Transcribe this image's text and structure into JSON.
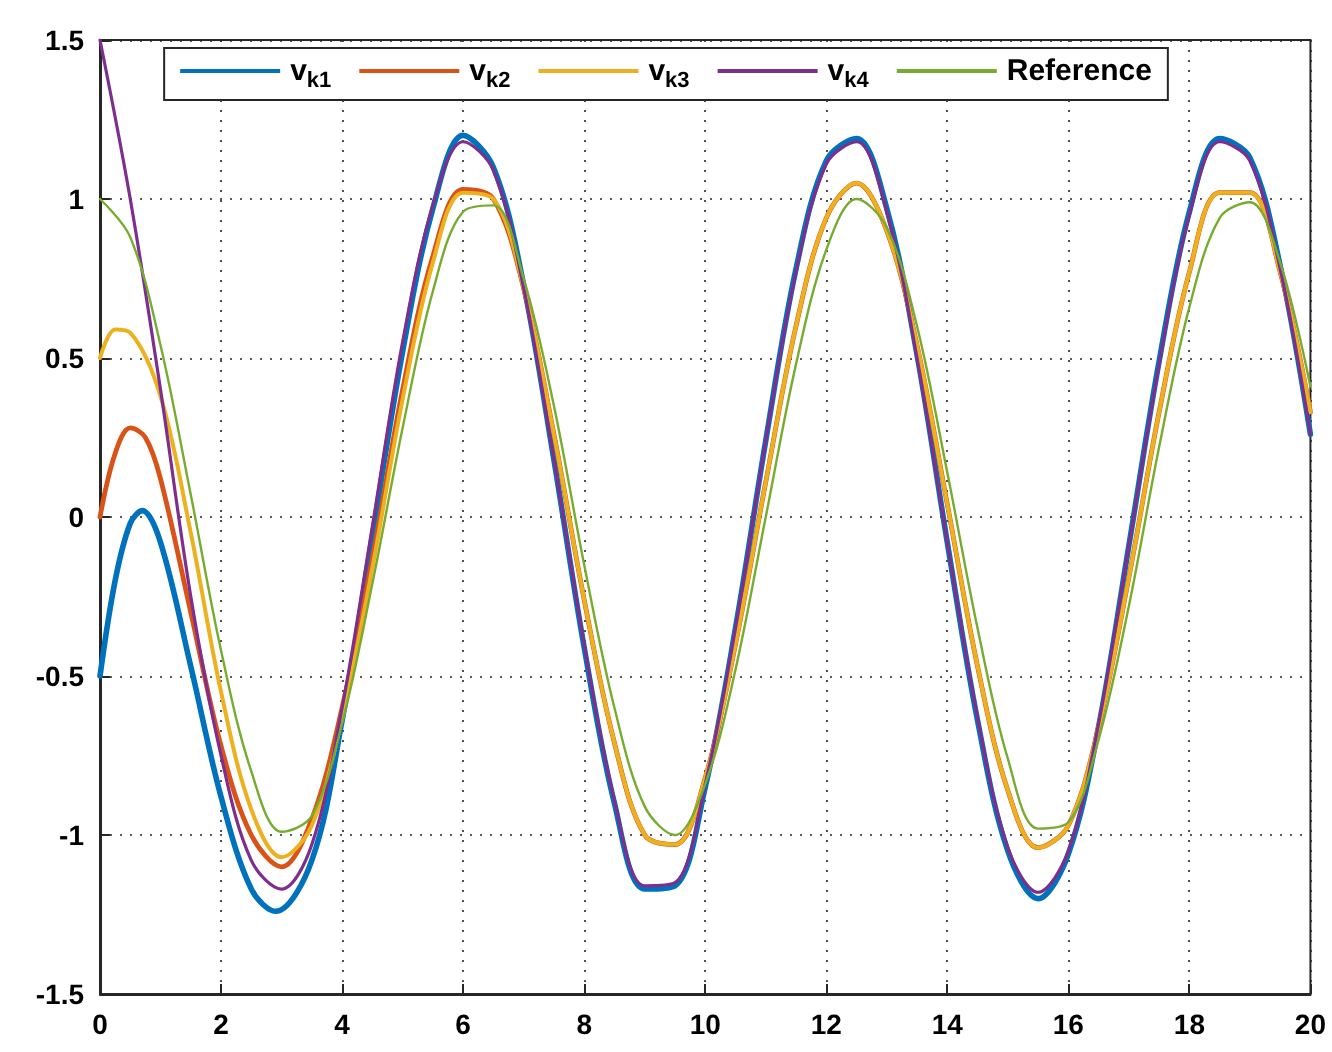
{
  "chart_data": {
    "type": "line",
    "xlim": [
      0,
      20
    ],
    "ylim": [
      -1.5,
      1.5
    ],
    "xticks": [
      0,
      2,
      4,
      6,
      8,
      10,
      12,
      14,
      16,
      18,
      20
    ],
    "yticks": [
      -1.5,
      -1,
      -0.5,
      0,
      0.5,
      1,
      1.5
    ],
    "grid": true,
    "legend": "top",
    "marker": "none",
    "line_style": "solid",
    "series": [
      {
        "name": "v$_{k1}$",
        "color": "#0072bd",
        "x": [
          0,
          0.25,
          0.5,
          0.7,
          1,
          1.5,
          2,
          2.5,
          2.9,
          3.5,
          4,
          4.5,
          5,
          5.5,
          6,
          6.5,
          7,
          7.5,
          8,
          8.5,
          9,
          9.5,
          10,
          10.5,
          11,
          11.5,
          12,
          12.5,
          13,
          13.5,
          14,
          14.5,
          15,
          15.5,
          16,
          16.5,
          17,
          17.5,
          18,
          18.5,
          19,
          19.5,
          20
        ],
        "values": [
          -0.5,
          -0.2,
          -0.02,
          0.02,
          -0.08,
          -0.47,
          -0.88,
          -1.17,
          -1.24,
          -1.08,
          -0.64,
          -0.06,
          0.52,
          0.97,
          1.2,
          1.1,
          0.73,
          0.18,
          -0.41,
          -0.9,
          -1.17,
          -1.16,
          -0.85,
          -0.35,
          0.24,
          0.78,
          1.12,
          1.19,
          0.97,
          0.51,
          -0.08,
          -0.64,
          -1.05,
          -1.2,
          -1.06,
          -0.66,
          -0.09,
          0.49,
          0.96,
          1.19,
          1.13,
          0.79,
          0.26
        ]
      },
      {
        "name": "v$_{k2}$",
        "color": "#d95319",
        "x": [
          0,
          0.25,
          0.5,
          0.75,
          1,
          1.5,
          2,
          2.5,
          3,
          3.5,
          4,
          4.5,
          5,
          5.5,
          6,
          6.5,
          7,
          7.5,
          8,
          8.5,
          9,
          9.5,
          10,
          10.5,
          11,
          11.5,
          12,
          12.5,
          13,
          13.5,
          14,
          14.5,
          15,
          15.5,
          16,
          16.5,
          17,
          17.5,
          18,
          18.5,
          19,
          19.5,
          20
        ],
        "values": [
          0,
          0.2,
          0.28,
          0.25,
          0.12,
          -0.3,
          -0.72,
          -1.0,
          -1.1,
          -0.95,
          -0.6,
          -0.13,
          0.4,
          0.82,
          1.03,
          1.0,
          0.72,
          0.26,
          -0.26,
          -0.71,
          -1.0,
          -1.03,
          -0.82,
          -0.4,
          0.11,
          0.6,
          0.94,
          1.05,
          0.9,
          0.54,
          0.04,
          -0.47,
          -0.86,
          -1.04,
          -0.97,
          -0.66,
          -0.19,
          0.33,
          0.77,
          1.02,
          1.02,
          0.77,
          0.33
        ]
      },
      {
        "name": "v$_{k3}$",
        "color": "#edb120",
        "x": [
          0,
          0.25,
          0.5,
          1,
          1.5,
          2,
          2.5,
          3,
          3.5,
          4,
          4.5,
          5,
          5.5,
          6,
          6.5,
          7,
          7.5,
          8,
          8.5,
          9,
          9.5,
          10,
          10.5,
          11,
          11.5,
          12,
          12.5,
          13,
          13.5,
          14,
          14.5,
          15,
          15.5,
          16,
          16.5,
          17,
          17.5,
          18,
          18.5,
          19,
          19.5,
          20
        ],
        "values": [
          0.5,
          0.59,
          0.58,
          0.38,
          -0.05,
          -0.55,
          -0.92,
          -1.07,
          -0.97,
          -0.63,
          -0.16,
          0.37,
          0.8,
          1.02,
          1.0,
          0.72,
          0.26,
          -0.26,
          -0.71,
          -1.0,
          -1.03,
          -0.82,
          -0.4,
          0.11,
          0.6,
          0.94,
          1.05,
          0.9,
          0.54,
          0.04,
          -0.47,
          -0.86,
          -1.04,
          -0.97,
          -0.66,
          -0.19,
          0.33,
          0.77,
          1.02,
          1.02,
          0.77,
          0.33
        ]
      },
      {
        "name": "v$_{k4}$",
        "color": "#7e2f8e",
        "x": [
          0,
          0.5,
          1,
          1.5,
          2,
          2.5,
          3,
          3.5,
          4,
          4.5,
          5,
          5.5,
          6,
          6.5,
          7,
          7.5,
          8,
          8.5,
          9,
          9.5,
          10,
          10.5,
          11,
          11.5,
          12,
          12.5,
          13,
          13.5,
          14,
          14.5,
          15,
          15.5,
          16,
          16.5,
          17,
          17.5,
          18,
          18.5,
          19,
          19.5,
          20
        ],
        "values": [
          1.5,
          1.0,
          0.4,
          -0.25,
          -0.75,
          -1.08,
          -1.17,
          -1.03,
          -0.6,
          -0.03,
          0.55,
          0.98,
          1.18,
          1.09,
          0.72,
          0.18,
          -0.4,
          -0.89,
          -1.16,
          -1.15,
          -0.84,
          -0.35,
          0.24,
          0.77,
          1.11,
          1.18,
          0.96,
          0.5,
          -0.08,
          -0.63,
          -1.04,
          -1.18,
          -1.05,
          -0.65,
          -0.09,
          0.48,
          0.95,
          1.18,
          1.12,
          0.78,
          0.26
        ]
      },
      {
        "name": "Reference",
        "color": "#77ac30",
        "x": [
          0,
          0.5,
          1,
          1.5,
          2,
          2.5,
          3,
          3.5,
          4,
          4.5,
          5,
          5.5,
          6,
          6.5,
          7,
          7.5,
          8,
          8.5,
          9,
          9.5,
          10,
          10.5,
          11,
          11.5,
          12,
          12.5,
          13,
          13.5,
          14,
          14.5,
          15,
          15.5,
          16,
          16.5,
          17,
          17.5,
          18,
          18.5,
          19,
          19.5,
          20
        ],
        "values": [
          1,
          0.88,
          0.54,
          0.07,
          -0.42,
          -0.8,
          -0.99,
          -0.94,
          -0.65,
          -0.21,
          0.28,
          0.71,
          0.96,
          0.98,
          0.75,
          0.35,
          -0.15,
          -0.6,
          -0.91,
          -1.0,
          -0.84,
          -0.48,
          0.0,
          0.48,
          0.84,
          1.0,
          0.91,
          0.6,
          0.14,
          -0.35,
          -0.76,
          -0.98,
          -0.96,
          -0.7,
          -0.28,
          0.22,
          0.66,
          0.94,
          0.99,
          0.8,
          0.41
        ]
      }
    ]
  }
}
